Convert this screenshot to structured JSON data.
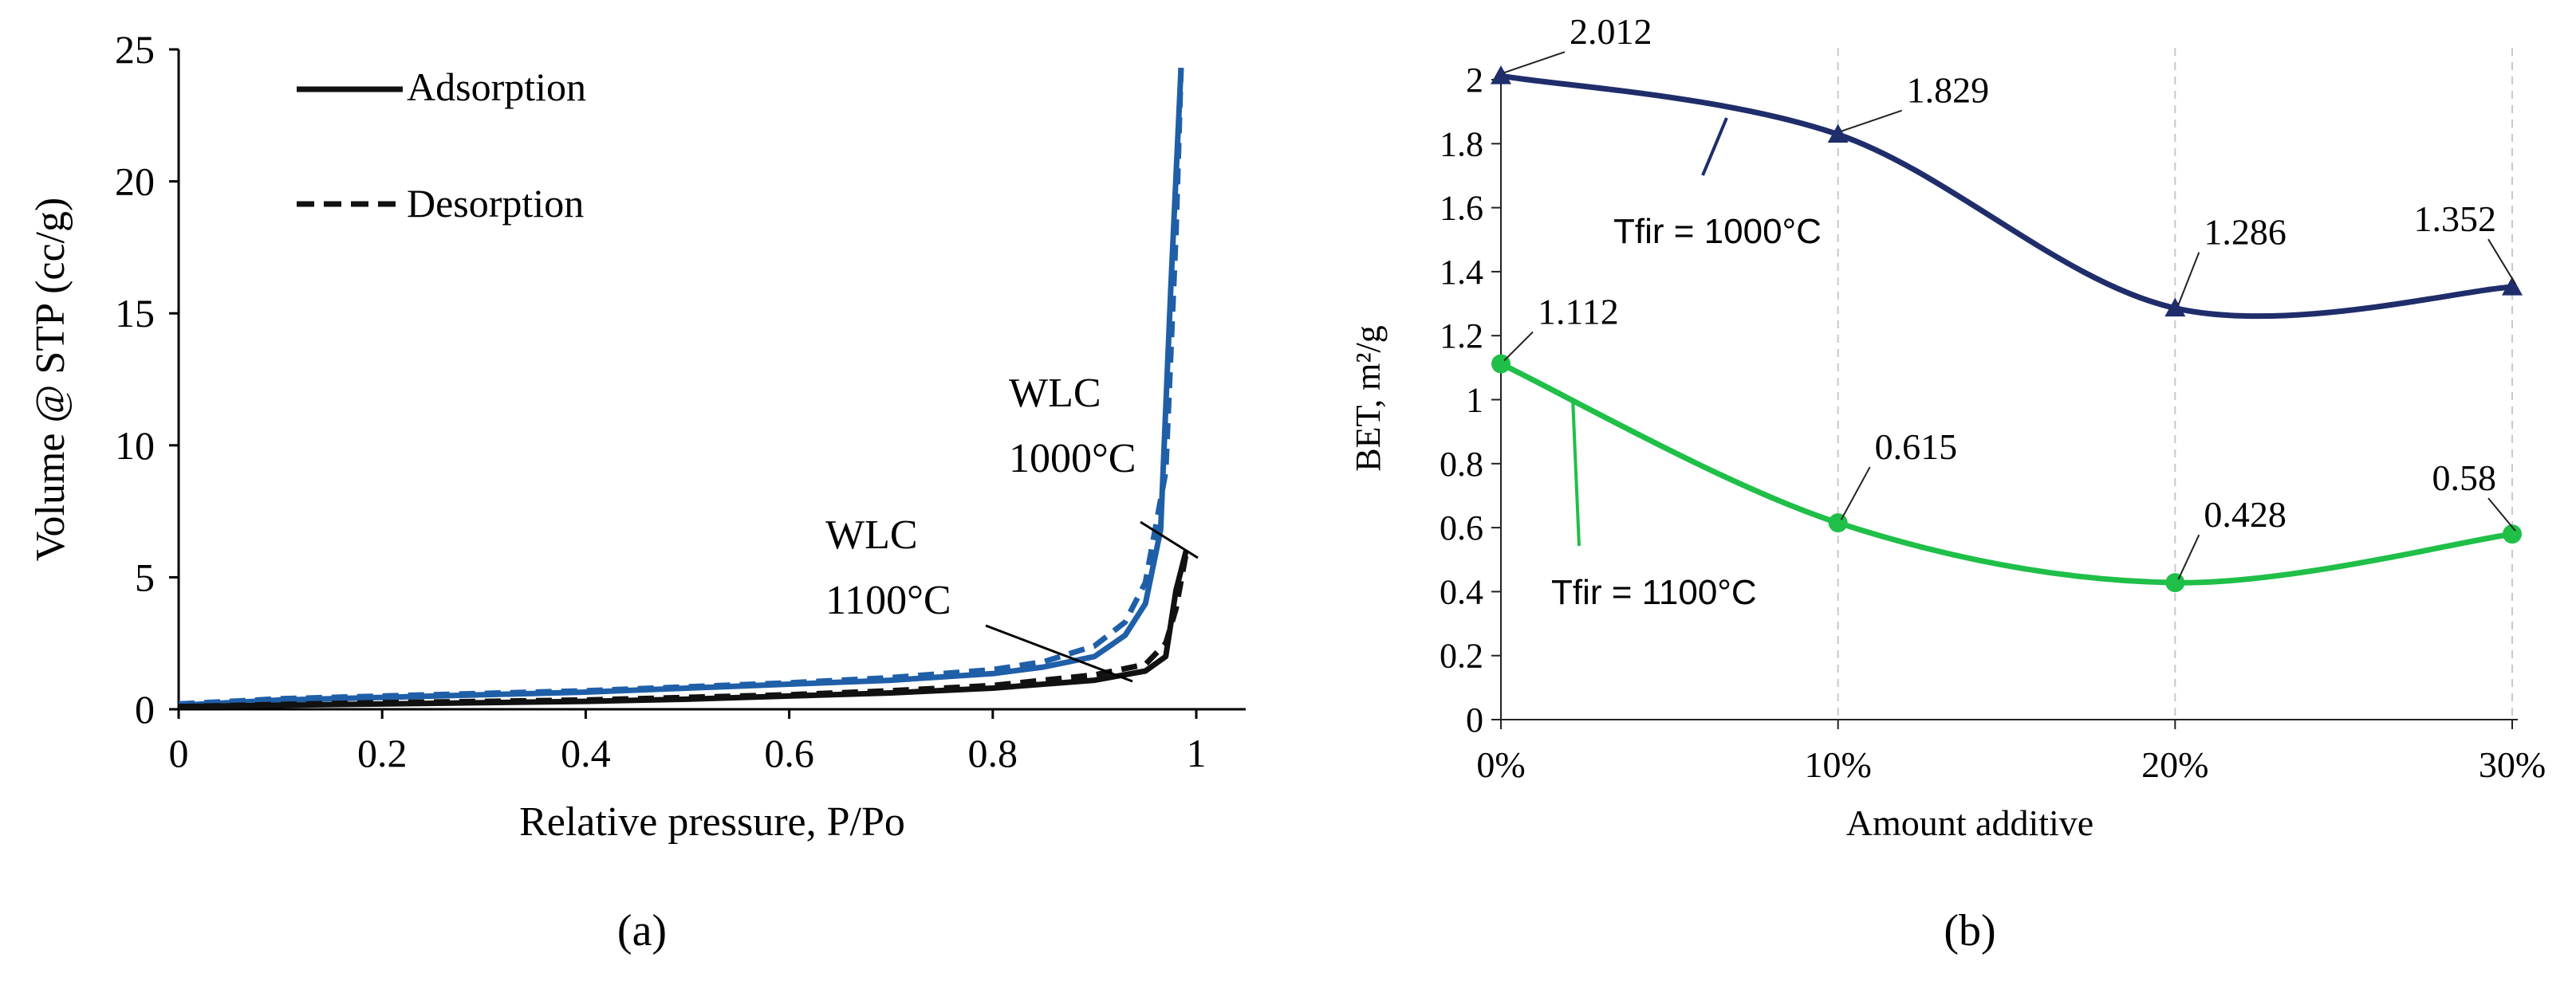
{
  "chart_data": [
    {
      "panel_label": "(a)",
      "type": "line",
      "title": "",
      "xlabel": "Relative pressure, P/Po",
      "ylabel": "Volume @ STP (cc/g)",
      "xlim": [
        0,
        1
      ],
      "ylim": [
        0,
        25
      ],
      "xticks": [
        "0",
        "0.2",
        "0.4",
        "0.6",
        "0.8",
        "1"
      ],
      "yticks": [
        "0",
        "5",
        "10",
        "15",
        "20",
        "25"
      ],
      "legend": {
        "position": "top-left",
        "entries": [
          {
            "label": "Adsorption",
            "style": "solid"
          },
          {
            "label": "Desorption",
            "style": "dashed"
          }
        ]
      },
      "series": [
        {
          "name": "WLC 1000°C adsorption",
          "color": "#1f5fa8",
          "style": "solid",
          "x": [
            0,
            0.1,
            0.2,
            0.3,
            0.4,
            0.5,
            0.6,
            0.7,
            0.8,
            0.85,
            0.9,
            0.93,
            0.95,
            0.965,
            0.975,
            0.985
          ],
          "y": [
            0.15,
            0.35,
            0.45,
            0.55,
            0.65,
            0.8,
            0.95,
            1.1,
            1.35,
            1.6,
            2.0,
            2.8,
            4.0,
            6.8,
            16.0,
            24.3
          ]
        },
        {
          "name": "WLC 1000°C desorption",
          "color": "#1f5fa8",
          "style": "dashed",
          "x": [
            0,
            0.1,
            0.2,
            0.3,
            0.4,
            0.5,
            0.6,
            0.7,
            0.8,
            0.85,
            0.9,
            0.93,
            0.95,
            0.97,
            0.98,
            0.985
          ],
          "y": [
            0.2,
            0.4,
            0.5,
            0.6,
            0.7,
            0.85,
            1.0,
            1.2,
            1.5,
            1.8,
            2.4,
            3.3,
            4.8,
            9.0,
            18.0,
            24.3
          ]
        },
        {
          "name": "WLC 1100°C adsorption",
          "color": "#111111",
          "style": "solid",
          "x": [
            0,
            0.1,
            0.2,
            0.3,
            0.4,
            0.5,
            0.6,
            0.7,
            0.8,
            0.9,
            0.95,
            0.97,
            0.98,
            0.99
          ],
          "y": [
            0.1,
            0.15,
            0.2,
            0.25,
            0.3,
            0.38,
            0.5,
            0.62,
            0.8,
            1.1,
            1.45,
            2.0,
            4.5,
            6.0
          ]
        },
        {
          "name": "WLC 1100°C desorption",
          "color": "#111111",
          "style": "dashed",
          "x": [
            0,
            0.1,
            0.2,
            0.3,
            0.4,
            0.5,
            0.6,
            0.7,
            0.8,
            0.9,
            0.95,
            0.97,
            0.98,
            0.99
          ],
          "y": [
            0.1,
            0.18,
            0.25,
            0.3,
            0.35,
            0.45,
            0.55,
            0.7,
            0.9,
            1.3,
            1.7,
            2.5,
            3.8,
            5.9
          ]
        }
      ],
      "annotations": [
        {
          "text_lines": [
            "WLC",
            "1000°C"
          ],
          "target": [
            0.955,
            6.2
          ]
        },
        {
          "text_lines": [
            "WLC",
            "1100°C"
          ],
          "target": [
            0.89,
            1.4
          ]
        }
      ]
    },
    {
      "panel_label": "(b)",
      "type": "line",
      "title": "",
      "xlabel": "Amount additive",
      "ylabel": "BET, m²/g",
      "categories": [
        "0%",
        "10%",
        "20%",
        "30%"
      ],
      "ylim": [
        0,
        2
      ],
      "yticks": [
        "0",
        "0.2",
        "0.4",
        "0.6",
        "0.8",
        "1",
        "1.2",
        "1.4",
        "1.6",
        "1.8",
        "2"
      ],
      "grid": "vertical dashed",
      "series": [
        {
          "name": "Tfir = 1000°C",
          "color": "#1f2d6b",
          "marker": "triangle",
          "values": [
            2.012,
            1.829,
            1.286,
            1.352
          ],
          "labels": [
            "2.012",
            "1.829",
            "1.286",
            "1.352"
          ]
        },
        {
          "name": "Tfir = 1100°C",
          "color": "#1fbf48",
          "marker": "circle",
          "values": [
            1.112,
            0.615,
            0.428,
            0.58
          ],
          "labels": [
            "1.112",
            "0.615",
            "0.428",
            "0.58"
          ]
        }
      ]
    }
  ]
}
